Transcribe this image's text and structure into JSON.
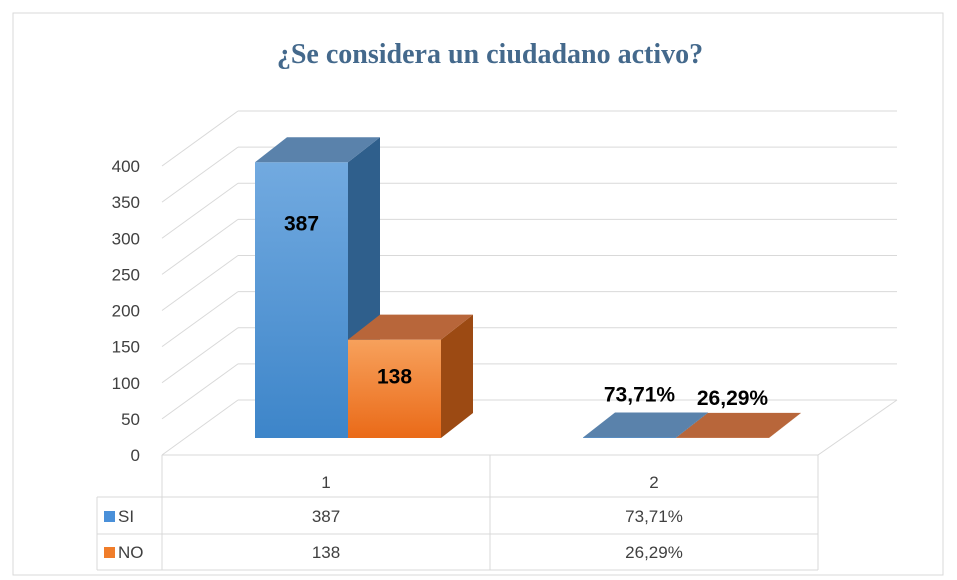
{
  "chart_data": {
    "type": "bar3d",
    "title": "¿Se considera un ciudadano activo?",
    "categories": [
      "1",
      "2"
    ],
    "series": [
      {
        "name": "SI",
        "color": "#4a90d9",
        "values": [
          387,
          0.7371
        ],
        "value_labels": [
          "387",
          "73,71%"
        ]
      },
      {
        "name": "NO",
        "color": "#f07d2a",
        "values": [
          138,
          0.2629
        ],
        "value_labels": [
          "138",
          "26,29%"
        ]
      }
    ],
    "ylim": [
      0,
      400
    ],
    "yticks": [
      0,
      50,
      100,
      150,
      200,
      250,
      300,
      350,
      400
    ],
    "grid": true,
    "data_table": true
  }
}
